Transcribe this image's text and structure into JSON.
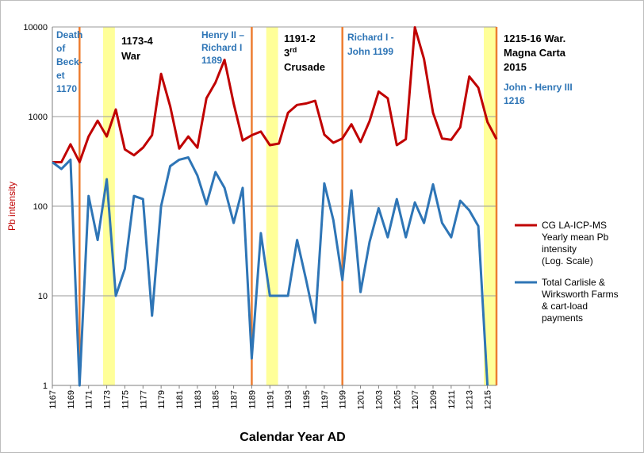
{
  "chart_data": {
    "type": "line",
    "xlabel": "Calendar Year AD",
    "ylabel": "Pb intensity",
    "yscale": "log",
    "ylim": [
      1,
      10000
    ],
    "y_ticks": [
      "1",
      "10",
      "100",
      "1000",
      "10000"
    ],
    "x_range": [
      1167,
      1216
    ],
    "x_tick_labels": [
      1167,
      1169,
      1171,
      1173,
      1175,
      1177,
      1179,
      1181,
      1183,
      1185,
      1187,
      1189,
      1191,
      1193,
      1195,
      1197,
      1199,
      1201,
      1203,
      1205,
      1207,
      1209,
      1211,
      1213,
      1215
    ],
    "grid": "horizontal",
    "legend_position": "right",
    "colors": {
      "red": "#c00000",
      "blue": "#2e75b6",
      "orange": "#ed7d31",
      "yellow": "#ffff99",
      "axis_label_red": "#c00000",
      "annotation_blue": "#2e75b6"
    },
    "series": [
      {
        "name": "CG LA-ICP-MS Yearly mean Pb intensity (Log. Scale)",
        "legend_lines": [
          "CG LA-ICP-MS",
          "Yearly mean Pb",
          "intensity",
          "(Log. Scale)"
        ],
        "color": "#c00000",
        "x": [
          1167,
          1168,
          1169,
          1170,
          1171,
          1172,
          1173,
          1174,
          1175,
          1176,
          1177,
          1178,
          1179,
          1180,
          1181,
          1182,
          1183,
          1184,
          1185,
          1186,
          1187,
          1188,
          1189,
          1190,
          1191,
          1192,
          1193,
          1194,
          1195,
          1196,
          1197,
          1198,
          1199,
          1200,
          1201,
          1202,
          1203,
          1204,
          1205,
          1206,
          1207,
          1208,
          1209,
          1210,
          1211,
          1212,
          1213,
          1214,
          1215,
          1216
        ],
        "values": [
          310,
          310,
          490,
          310,
          600,
          900,
          600,
          1200,
          430,
          370,
          450,
          620,
          3000,
          1300,
          440,
          600,
          450,
          1600,
          2400,
          4300,
          1400,
          540,
          620,
          680,
          480,
          500,
          1100,
          1350,
          1400,
          1500,
          630,
          510,
          570,
          820,
          520,
          890,
          1900,
          1600,
          480,
          560,
          9900,
          4400,
          1100,
          570,
          550,
          760,
          2800,
          2100,
          870,
          560
        ]
      },
      {
        "name": "Total Carlisle & Wirksworth Farms & cart-load payments",
        "legend_lines": [
          "Total Carlisle &",
          "Wirksworth Farms",
          "& cart-load",
          "payments"
        ],
        "color": "#2e75b6",
        "x": [
          1167,
          1168,
          1169,
          1170,
          1171,
          1172,
          1173,
          1174,
          1175,
          1176,
          1177,
          1178,
          1179,
          1180,
          1181,
          1182,
          1183,
          1184,
          1185,
          1186,
          1187,
          1188,
          1189,
          1190,
          1191,
          1192,
          1193,
          1194,
          1195,
          1196,
          1197,
          1198,
          1199,
          1200,
          1201,
          1202,
          1203,
          1204,
          1205,
          1206,
          1207,
          1208,
          1209,
          1210,
          1211,
          1212,
          1213,
          1214,
          1215
        ],
        "values": [
          310,
          260,
          330,
          1,
          130,
          42,
          200,
          10,
          20,
          130,
          120,
          6,
          100,
          280,
          330,
          350,
          220,
          105,
          240,
          160,
          65,
          160,
          2,
          50,
          10,
          10,
          10,
          42,
          15,
          5,
          180,
          70,
          15,
          150,
          11,
          40,
          95,
          45,
          120,
          45,
          110,
          65,
          175,
          65,
          45,
          115,
          90,
          60,
          1
        ]
      }
    ],
    "event_lines": [
      1170,
      1189,
      1199,
      1216
    ],
    "event_bands": [
      [
        1172.6,
        1173.9
      ],
      [
        1190.6,
        1191.9
      ],
      [
        1214.6,
        1216
      ]
    ],
    "annotations": [
      {
        "lines": [
          "Death",
          "of",
          "Beck-",
          "et",
          "1170"
        ],
        "style": "blue"
      },
      {
        "lines": [
          "1173-4",
          "War"
        ],
        "style": "black"
      },
      {
        "lines": [
          "Henry II –",
          "Richard I",
          "1189"
        ],
        "style": "blue"
      },
      {
        "lines": [
          "1191-2",
          "3rd",
          "Crusade"
        ],
        "style": "black"
      },
      {
        "lines": [
          "Richard I -",
          "John 1199"
        ],
        "style": "blue"
      },
      {
        "lines": [
          "1215-16 War.",
          "Magna Carta",
          "2015"
        ],
        "style": "black"
      },
      {
        "lines": [
          "John - Henry III",
          "1216"
        ],
        "style": "blue"
      }
    ]
  }
}
